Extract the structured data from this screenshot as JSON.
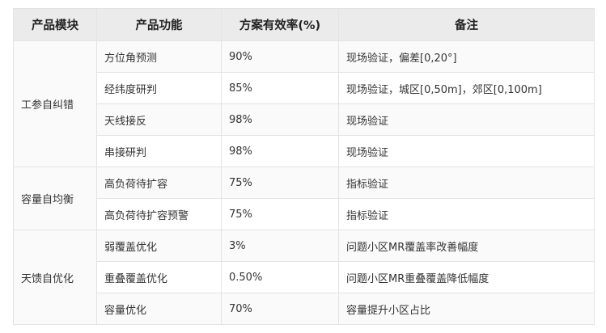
{
  "headers": [
    "产品模块",
    "产品功能",
    "方案有效率(%)",
    "备注"
  ],
  "groups": [
    {
      "module": "工参自纠错",
      "rows": [
        {
          "feature": "方位角预测",
          "rate": "90%",
          "note": "现场验证，偏差[0,20°]"
        },
        {
          "feature": "经纬度研判",
          "rate": "85%",
          "note": "现场验证，城区[0,50m]，郊区[0,100m]"
        },
        {
          "feature": "天线接反",
          "rate": "98%",
          "note": "现场验证"
        },
        {
          "feature": "串接研判",
          "rate": "98%",
          "note": "现场验证"
        }
      ]
    },
    {
      "module": "容量自均衡",
      "rows": [
        {
          "feature": "高负荷待扩容",
          "rate": "75%",
          "note": "指标验证"
        },
        {
          "feature": "高负荷待扩容预警",
          "rate": "75%",
          "note": "指标验证"
        }
      ]
    },
    {
      "module": "天馈自优化",
      "rows": [
        {
          "feature": "弱覆盖优化",
          "rate": "3%",
          "note": "问题小区MR覆盖率改善幅度"
        },
        {
          "feature": "重叠覆盖优化",
          "rate": "0.50%",
          "note": "问题小区MR重叠覆盖降低幅度"
        },
        {
          "feature": "容量优化",
          "rate": "70%",
          "note": "容量提升小区占比"
        }
      ]
    }
  ]
}
